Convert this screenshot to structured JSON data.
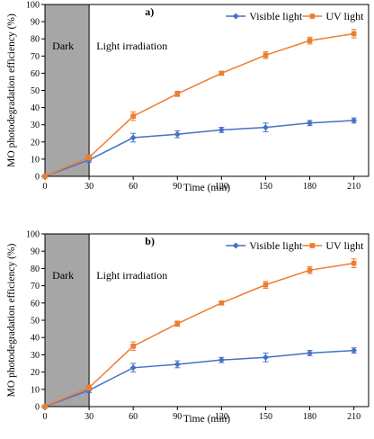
{
  "chart_data": [
    {
      "type": "line",
      "panel_label": "a)",
      "xlabel": "Time (min)",
      "ylabel": "MO photodegradation efficiency (%)",
      "x": [
        0,
        30,
        60,
        90,
        120,
        150,
        180,
        210
      ],
      "xlim": [
        0,
        220
      ],
      "ylim": [
        0,
        100
      ],
      "xticks": [
        0,
        30,
        60,
        90,
        120,
        150,
        180,
        210
      ],
      "yticks": [
        0,
        10,
        20,
        30,
        40,
        50,
        60,
        70,
        80,
        90,
        100
      ],
      "grid": false,
      "legend_position": "top-right",
      "shaded_region": {
        "x": [
          0,
          30
        ],
        "label": "Dark"
      },
      "region_annotation": "Light irradiation",
      "series": [
        {
          "name": "Visible light",
          "color": "#4472C4",
          "marker": "diamond",
          "values": [
            0,
            9.5,
            22.5,
            24.5,
            27,
            28.5,
            31,
            32.5
          ],
          "errors": [
            0,
            1.5,
            2.5,
            2,
            1.5,
            2.5,
            1.5,
            1.5
          ]
        },
        {
          "name": "UV light",
          "color": "#ED7D31",
          "marker": "square",
          "values": [
            0,
            11,
            35,
            48,
            60,
            70.5,
            79,
            83
          ],
          "errors": [
            0,
            1.5,
            2.5,
            1.5,
            1,
            2,
            2,
            2.5
          ]
        }
      ]
    },
    {
      "type": "line",
      "panel_label": "b)",
      "xlabel": "Time (min)",
      "ylabel": "MO photodegradation efficiency (%)",
      "x": [
        0,
        30,
        60,
        90,
        120,
        150,
        180,
        210
      ],
      "xlim": [
        0,
        220
      ],
      "ylim": [
        0,
        100
      ],
      "xticks": [
        0,
        30,
        60,
        90,
        120,
        150,
        180,
        210
      ],
      "yticks": [
        0,
        10,
        20,
        30,
        40,
        50,
        60,
        70,
        80,
        90,
        100
      ],
      "grid": false,
      "legend_position": "top-right",
      "shaded_region": {
        "x": [
          0,
          30
        ],
        "label": "Dark"
      },
      "region_annotation": "Light irradiation",
      "series": [
        {
          "name": "Visible light",
          "color": "#4472C4",
          "marker": "diamond",
          "values": [
            0,
            9.5,
            22.5,
            24.5,
            27,
            28.5,
            31,
            32.5
          ],
          "errors": [
            0,
            1.5,
            2.5,
            2,
            1.5,
            2.5,
            1.5,
            1.5
          ]
        },
        {
          "name": "UV light",
          "color": "#ED7D31",
          "marker": "square",
          "values": [
            0,
            11,
            35,
            48,
            60,
            70.5,
            79,
            83
          ],
          "errors": [
            0,
            1.5,
            2.5,
            1.5,
            1,
            2,
            2,
            2.5
          ]
        }
      ]
    }
  ]
}
